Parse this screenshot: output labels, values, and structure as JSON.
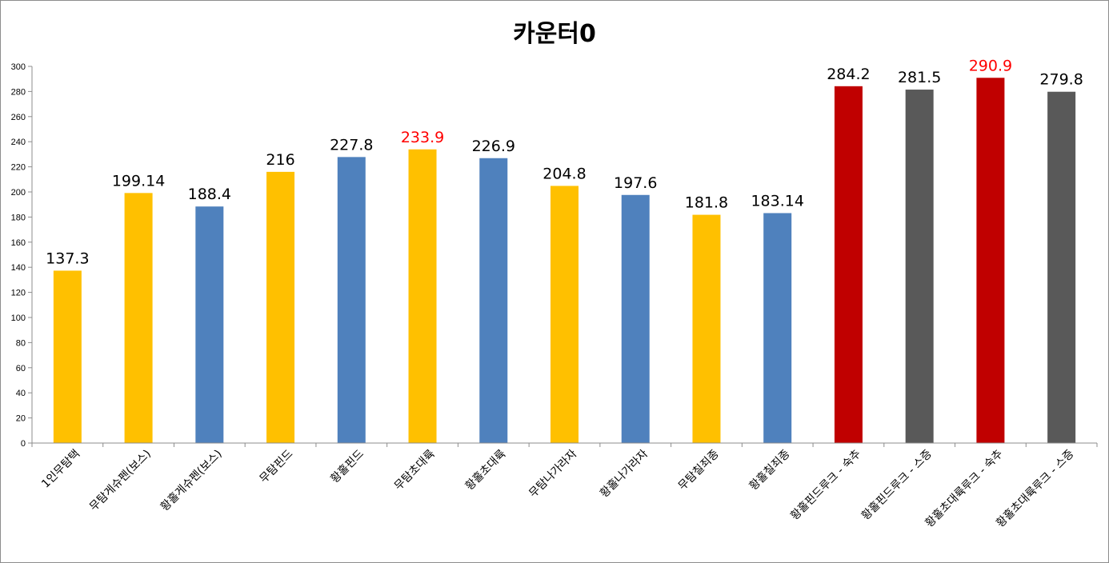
{
  "chart_data": {
    "type": "bar",
    "title": "카운터0",
    "xlabel": "",
    "ylabel": "",
    "ylim": [
      0,
      300
    ],
    "ytick_step": 20,
    "grid": false,
    "legend": "none",
    "categories": [
      "1인무탐택",
      "무탐게슈펜(보스)",
      "황홀게슈펜(보스)",
      "무탐핀드",
      "황홀핀드",
      "무탐초대륙",
      "황홀초대륙",
      "무탐나가라자",
      "황홀나가라자",
      "무탐칠죄종",
      "황홀칠죄종",
      "황홀핀드루크 - 숙추",
      "황홀핀드루크 - 스증",
      "황홀초대륙루크 - 숙추",
      "황홀초대륙루크 - 스증"
    ],
    "values": [
      137.3,
      199.14,
      188.4,
      216,
      227.8,
      233.9,
      226.9,
      204.8,
      197.6,
      181.8,
      183.14,
      284.2,
      281.5,
      290.9,
      279.8
    ],
    "bar_colors": [
      "#FFC000",
      "#FFC000",
      "#4F81BD",
      "#FFC000",
      "#4F81BD",
      "#FFC000",
      "#4F81BD",
      "#FFC000",
      "#4F81BD",
      "#FFC000",
      "#4F81BD",
      "#C00000",
      "#595959",
      "#C00000",
      "#595959"
    ],
    "label_colors": [
      "#000000",
      "#000000",
      "#000000",
      "#000000",
      "#000000",
      "#FF0000",
      "#000000",
      "#000000",
      "#000000",
      "#000000",
      "#000000",
      "#000000",
      "#000000",
      "#FF0000",
      "#000000"
    ],
    "value_labels": [
      "137.3",
      "199.14",
      "188.4",
      "216",
      "227.8",
      "233.9",
      "226.9",
      "204.8",
      "197.6",
      "181.8",
      "183.14",
      "284.2",
      "281.5",
      "290.9",
      "279.8"
    ]
  }
}
